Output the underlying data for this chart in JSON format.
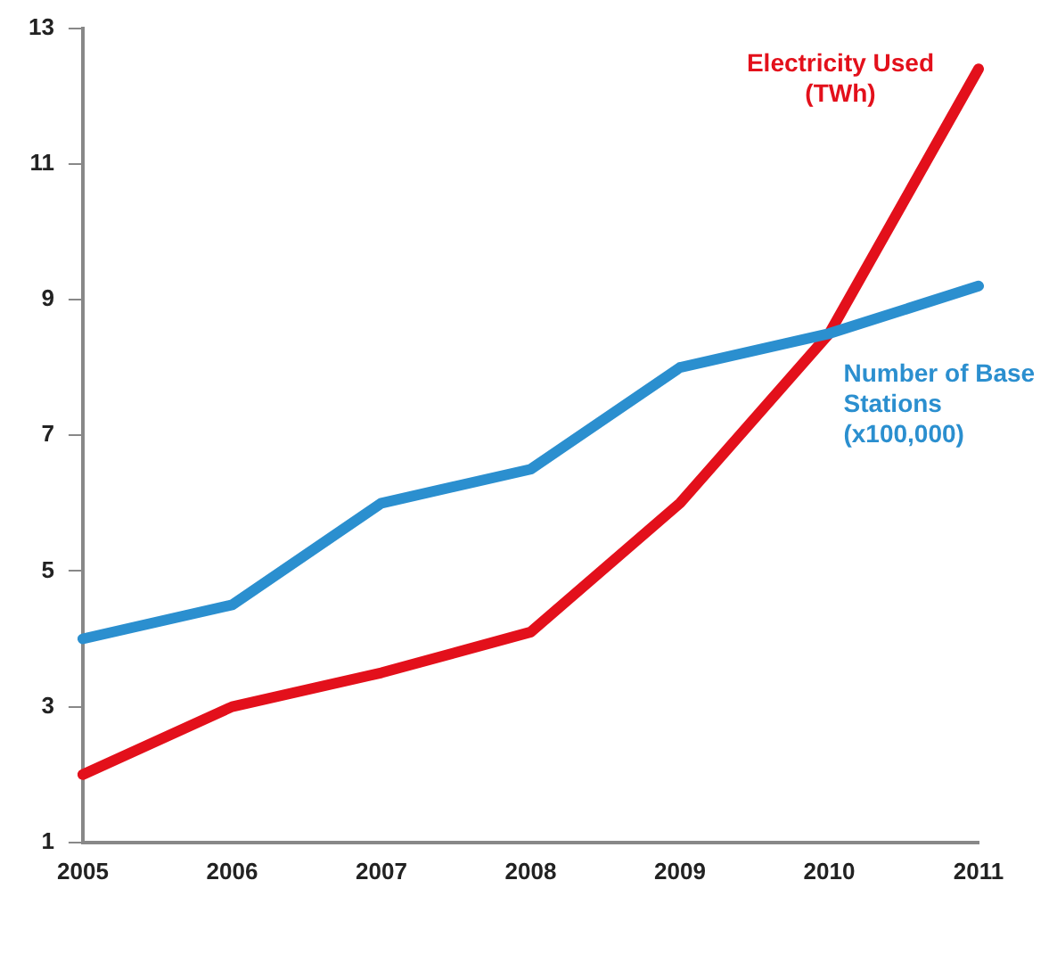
{
  "chart_data": {
    "type": "line",
    "categories": [
      "2005",
      "2006",
      "2007",
      "2008",
      "2009",
      "2010",
      "2011"
    ],
    "series": [
      {
        "name": "Number of Base Stations (x100,000)",
        "color": "#2b8fcf",
        "values": [
          4.0,
          4.5,
          6.0,
          6.5,
          8.0,
          8.5,
          9.2
        ]
      },
      {
        "name": "Electricity Used (TWh)",
        "color": "#e3101b",
        "values": [
          2.0,
          3.0,
          3.5,
          4.1,
          6.0,
          8.5,
          12.4
        ]
      }
    ],
    "ylim": [
      1,
      13
    ],
    "yticks": [
      1,
      3,
      5,
      7,
      9,
      11,
      13
    ],
    "grid": false,
    "legend": false,
    "marker": "none",
    "line_style": "solid"
  }
}
